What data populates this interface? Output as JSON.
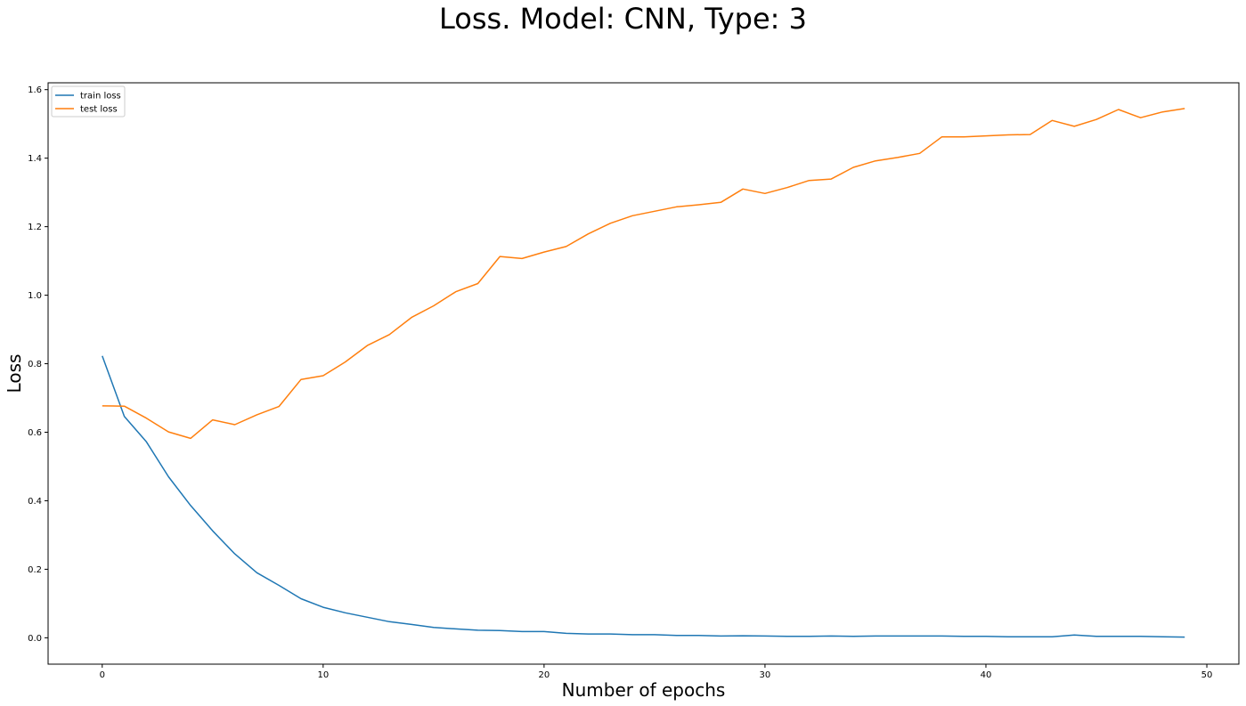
{
  "chart_data": {
    "type": "line",
    "title": "Loss. Model: CNN, Type: 3",
    "xlabel": "Number of epochs",
    "ylabel": "Loss",
    "xlim": [
      -2.45,
      51.45
    ],
    "ylim": [
      -0.077,
      1.62
    ],
    "xticks": [
      "0",
      "10",
      "20",
      "30",
      "40",
      "50"
    ],
    "yticks": [
      "0.0",
      "0.2",
      "0.4",
      "0.6",
      "0.8",
      "1.0",
      "1.2",
      "1.4",
      "1.6"
    ],
    "grid": false,
    "legend": "top-left",
    "x": [
      0,
      1,
      2,
      3,
      4,
      5,
      6,
      7,
      8,
      9,
      10,
      11,
      12,
      13,
      14,
      15,
      16,
      17,
      18,
      19,
      20,
      21,
      22,
      23,
      24,
      25,
      26,
      27,
      28,
      29,
      30,
      31,
      32,
      33,
      34,
      35,
      36,
      37,
      38,
      39,
      40,
      41,
      42,
      43,
      44,
      45,
      46,
      47,
      48,
      49
    ],
    "series": [
      {
        "name": "train loss",
        "color": "#1f77b4",
        "values": [
          0.823,
          0.646,
          0.572,
          0.47,
          0.386,
          0.312,
          0.245,
          0.19,
          0.153,
          0.114,
          0.089,
          0.073,
          0.06,
          0.047,
          0.039,
          0.03,
          0.026,
          0.022,
          0.021,
          0.018,
          0.018,
          0.013,
          0.011,
          0.011,
          0.009,
          0.009,
          0.007,
          0.007,
          0.005,
          0.006,
          0.005,
          0.004,
          0.004,
          0.005,
          0.004,
          0.005,
          0.005,
          0.005,
          0.005,
          0.004,
          0.004,
          0.003,
          0.003,
          0.003,
          0.008,
          0.004,
          0.004,
          0.004,
          0.003,
          0.002
        ]
      },
      {
        "name": "test loss",
        "color": "#ff7f0e",
        "values": [
          0.677,
          0.676,
          0.641,
          0.601,
          0.582,
          0.636,
          0.622,
          0.651,
          0.675,
          0.754,
          0.765,
          0.805,
          0.853,
          0.885,
          0.935,
          0.969,
          1.01,
          1.034,
          1.113,
          1.107,
          1.126,
          1.142,
          1.179,
          1.21,
          1.232,
          1.245,
          1.258,
          1.264,
          1.271,
          1.31,
          1.297,
          1.314,
          1.335,
          1.339,
          1.373,
          1.392,
          1.402,
          1.414,
          1.462,
          1.462,
          1.465,
          1.468,
          1.469,
          1.51,
          1.493,
          1.513,
          1.542,
          1.518,
          1.535,
          1.545
        ]
      }
    ]
  }
}
